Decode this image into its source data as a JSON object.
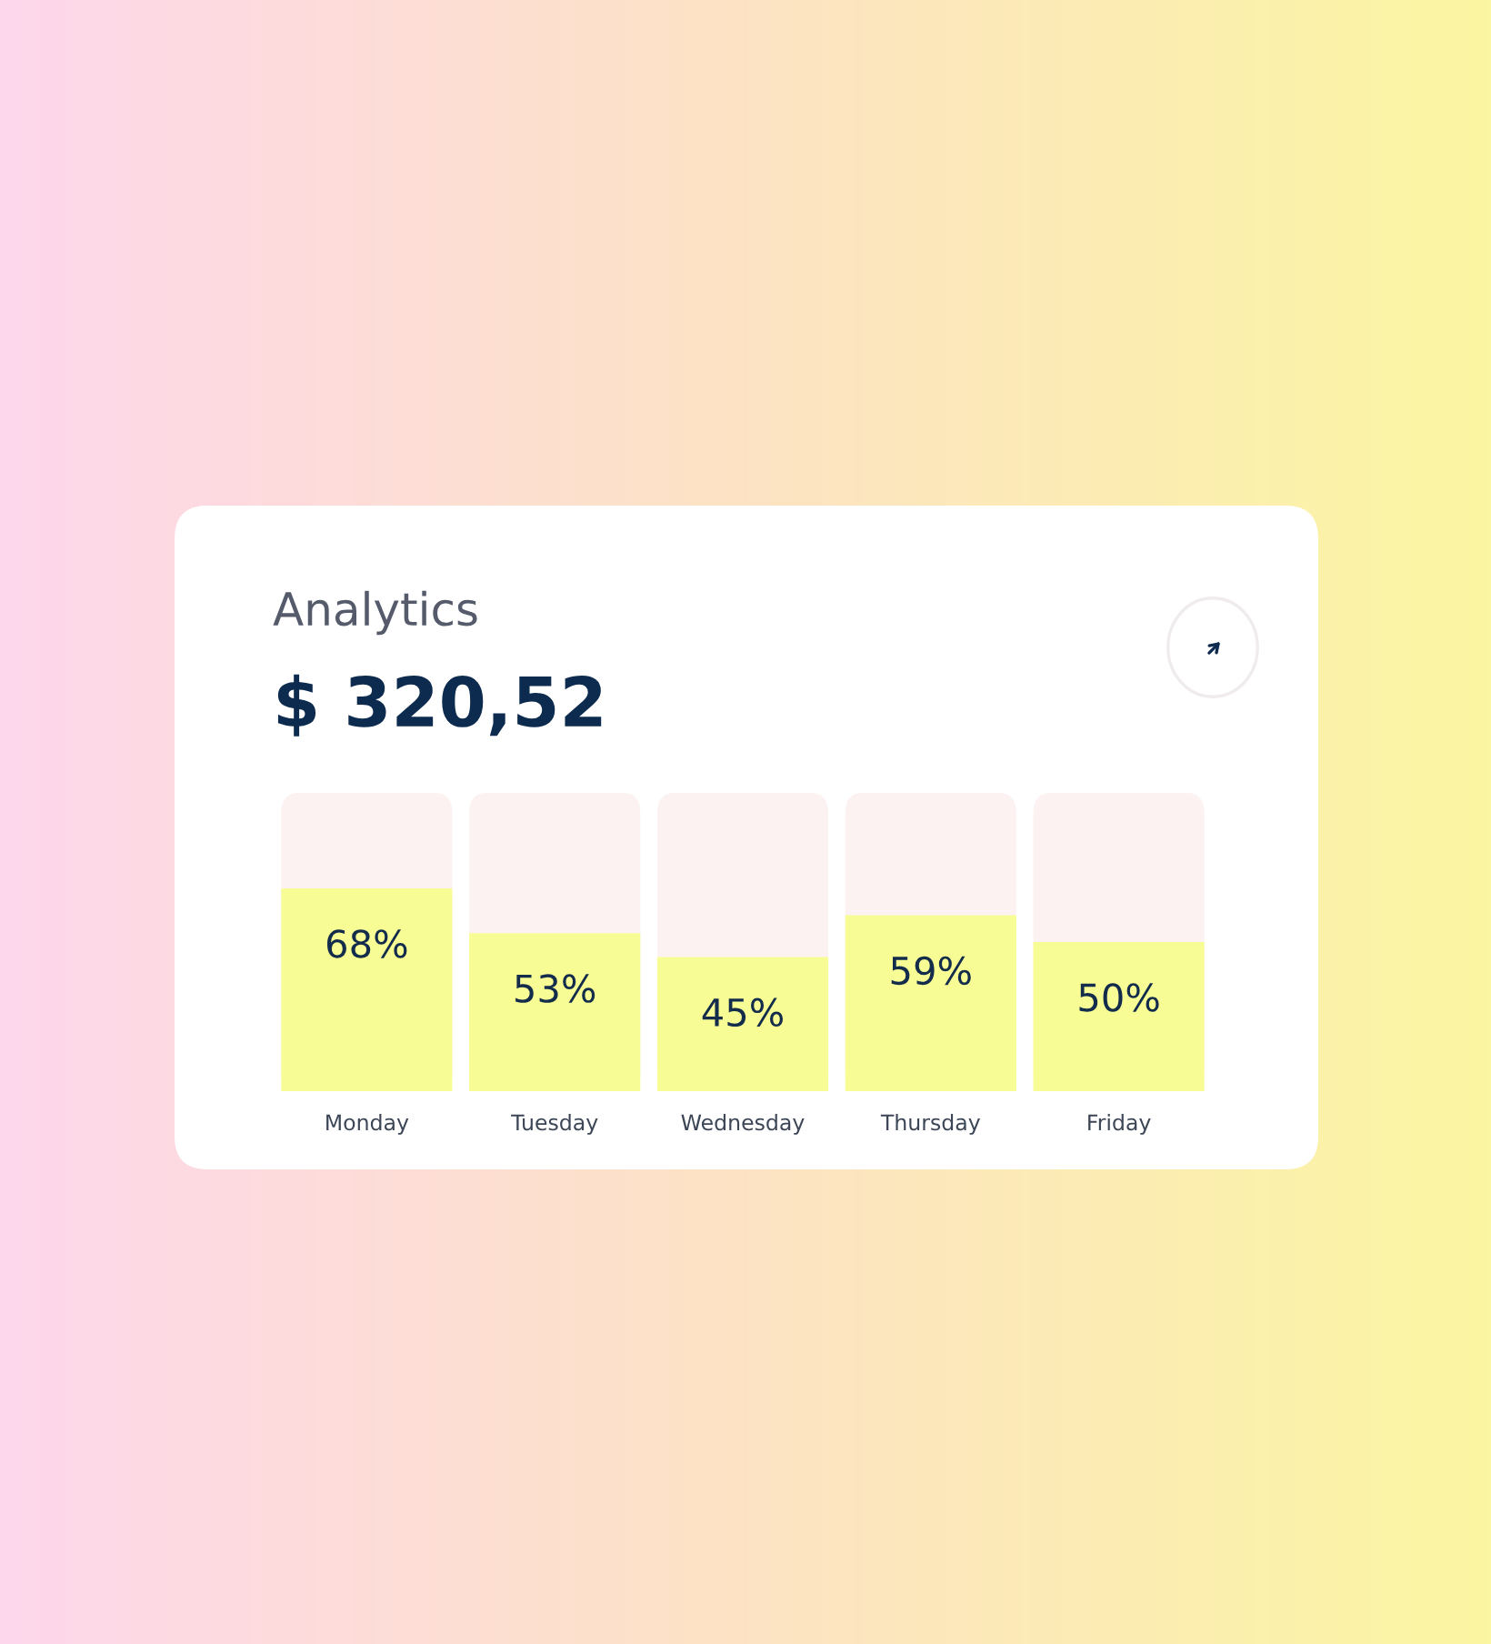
{
  "chart_data": {
    "type": "bar",
    "title": "Analytics",
    "subtitle": "$ 320,52",
    "categories": [
      "Monday",
      "Tuesday",
      "Wednesday",
      "Thursday",
      "Friday"
    ],
    "values": [
      68,
      53,
      45,
      59,
      50
    ],
    "value_labels": [
      "68%",
      "53%",
      "45%",
      "59%",
      "50%"
    ],
    "color": "#f7fd94",
    "ylim": [
      0,
      100
    ],
    "grid": false,
    "tick_labels": "x"
  }
}
